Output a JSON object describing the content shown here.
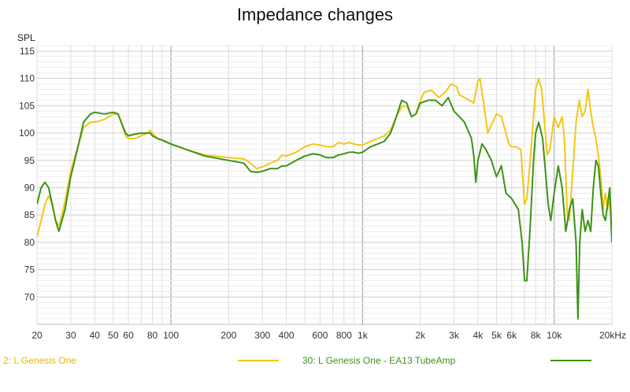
{
  "chart_data": {
    "type": "line",
    "title": "Impedance changes",
    "ylabel": "SPL",
    "xlabel": "",
    "x_scale": "log",
    "xlim": [
      20,
      20000
    ],
    "ylim": [
      65,
      116
    ],
    "grid": true,
    "legend_position": "bottom",
    "y_ticks": [
      70,
      75,
      80,
      85,
      90,
      95,
      100,
      105,
      110,
      115
    ],
    "x_ticks": [
      {
        "value": 20,
        "label": "20"
      },
      {
        "value": 30,
        "label": "30"
      },
      {
        "value": 40,
        "label": "40"
      },
      {
        "value": 50,
        "label": "50"
      },
      {
        "value": 60,
        "label": "60"
      },
      {
        "value": 80,
        "label": "80"
      },
      {
        "value": 100,
        "label": "100"
      },
      {
        "value": 200,
        "label": "200"
      },
      {
        "value": 300,
        "label": "300"
      },
      {
        "value": 400,
        "label": "400"
      },
      {
        "value": 600,
        "label": "600"
      },
      {
        "value": 800,
        "label": "800"
      },
      {
        "value": 1000,
        "label": "1k"
      },
      {
        "value": 2000,
        "label": "2k"
      },
      {
        "value": 3000,
        "label": "3k"
      },
      {
        "value": 4000,
        "label": "4k"
      },
      {
        "value": 5000,
        "label": "5k"
      },
      {
        "value": 6000,
        "label": "6k"
      },
      {
        "value": 8000,
        "label": "8k"
      },
      {
        "value": 10000,
        "label": "10k"
      },
      {
        "value": 20000,
        "label": "20kHz"
      }
    ],
    "series": [
      {
        "name": "2: L Genesis One",
        "color": "#f2c718",
        "points": [
          [
            20,
            81
          ],
          [
            21,
            84
          ],
          [
            22,
            87
          ],
          [
            23,
            88.5
          ],
          [
            24,
            87
          ],
          [
            25,
            84
          ],
          [
            26,
            83
          ],
          [
            27,
            85
          ],
          [
            28,
            87.5
          ],
          [
            30,
            93
          ],
          [
            33,
            98
          ],
          [
            35,
            101
          ],
          [
            38,
            102
          ],
          [
            40,
            102
          ],
          [
            45,
            102.5
          ],
          [
            50,
            103.5
          ],
          [
            53,
            103.5
          ],
          [
            55,
            102
          ],
          [
            58,
            99.5
          ],
          [
            60,
            99
          ],
          [
            65,
            99
          ],
          [
            70,
            99.5
          ],
          [
            75,
            100
          ],
          [
            78,
            100.5
          ],
          [
            80,
            100
          ],
          [
            85,
            99
          ],
          [
            90,
            98.8
          ],
          [
            100,
            98
          ],
          [
            120,
            97
          ],
          [
            150,
            96
          ],
          [
            200,
            95.5
          ],
          [
            240,
            95.3
          ],
          [
            260,
            94.5
          ],
          [
            280,
            93.5
          ],
          [
            300,
            93.8
          ],
          [
            330,
            94.5
          ],
          [
            360,
            95
          ],
          [
            380,
            96
          ],
          [
            400,
            95.8
          ],
          [
            450,
            96.5
          ],
          [
            500,
            97.5
          ],
          [
            550,
            98
          ],
          [
            600,
            97.8
          ],
          [
            650,
            97.5
          ],
          [
            700,
            97.5
          ],
          [
            750,
            98.3
          ],
          [
            800,
            98
          ],
          [
            850,
            98.3
          ],
          [
            900,
            98
          ],
          [
            950,
            97.8
          ],
          [
            1000,
            97.8
          ],
          [
            1100,
            98.5
          ],
          [
            1200,
            99
          ],
          [
            1300,
            99.5
          ],
          [
            1400,
            100.5
          ],
          [
            1500,
            103
          ],
          [
            1600,
            104.8
          ],
          [
            1700,
            105
          ],
          [
            1800,
            103
          ],
          [
            1900,
            103.5
          ],
          [
            2000,
            106
          ],
          [
            2100,
            107.5
          ],
          [
            2300,
            107.8
          ],
          [
            2500,
            106.5
          ],
          [
            2700,
            107.5
          ],
          [
            2900,
            109
          ],
          [
            3100,
            108.5
          ],
          [
            3200,
            107
          ],
          [
            3400,
            106.5
          ],
          [
            3600,
            106
          ],
          [
            3800,
            105.5
          ],
          [
            4000,
            109.5
          ],
          [
            4100,
            110
          ],
          [
            4300,
            105
          ],
          [
            4500,
            100
          ],
          [
            4700,
            101.5
          ],
          [
            5000,
            103.5
          ],
          [
            5300,
            103
          ],
          [
            5500,
            101
          ],
          [
            5800,
            98
          ],
          [
            6000,
            97.5
          ],
          [
            6300,
            97.5
          ],
          [
            6700,
            97
          ],
          [
            7000,
            87
          ],
          [
            7200,
            88
          ],
          [
            7500,
            95
          ],
          [
            7800,
            103
          ],
          [
            8000,
            108
          ],
          [
            8300,
            110
          ],
          [
            8600,
            108
          ],
          [
            9000,
            100
          ],
          [
            9200,
            96
          ],
          [
            9500,
            97
          ],
          [
            10000,
            103
          ],
          [
            10500,
            101
          ],
          [
            11000,
            103
          ],
          [
            11300,
            99
          ],
          [
            11700,
            85
          ],
          [
            12000,
            84
          ],
          [
            12500,
            93
          ],
          [
            13000,
            102
          ],
          [
            13500,
            106
          ],
          [
            14000,
            103
          ],
          [
            14500,
            104
          ],
          [
            15000,
            108
          ],
          [
            15500,
            104
          ],
          [
            16000,
            101
          ],
          [
            16500,
            99
          ],
          [
            17000,
            96
          ],
          [
            17500,
            92
          ],
          [
            18000,
            86
          ],
          [
            18500,
            89
          ],
          [
            19000,
            86
          ],
          [
            19500,
            88
          ],
          [
            20000,
            81
          ]
        ]
      },
      {
        "name": "30: L Genesis One - EA13 TubeAmp",
        "color": "#3d9316",
        "points": [
          [
            20,
            87
          ],
          [
            21,
            90
          ],
          [
            22,
            91
          ],
          [
            23,
            90
          ],
          [
            24,
            87
          ],
          [
            25,
            84
          ],
          [
            26,
            82
          ],
          [
            27,
            84
          ],
          [
            28,
            86
          ],
          [
            30,
            92
          ],
          [
            33,
            98
          ],
          [
            35,
            102
          ],
          [
            38,
            103.5
          ],
          [
            40,
            103.8
          ],
          [
            45,
            103.5
          ],
          [
            50,
            103.8
          ],
          [
            53,
            103.5
          ],
          [
            55,
            102
          ],
          [
            58,
            100
          ],
          [
            60,
            99.5
          ],
          [
            65,
            99.8
          ],
          [
            70,
            100
          ],
          [
            75,
            100
          ],
          [
            78,
            100
          ],
          [
            80,
            99.5
          ],
          [
            85,
            99
          ],
          [
            90,
            98.7
          ],
          [
            100,
            98
          ],
          [
            120,
            97
          ],
          [
            150,
            95.8
          ],
          [
            200,
            95
          ],
          [
            240,
            94.5
          ],
          [
            260,
            93
          ],
          [
            280,
            92.8
          ],
          [
            300,
            93
          ],
          [
            330,
            93.5
          ],
          [
            360,
            93.5
          ],
          [
            380,
            94
          ],
          [
            400,
            94
          ],
          [
            450,
            95
          ],
          [
            500,
            95.8
          ],
          [
            550,
            96.2
          ],
          [
            600,
            96
          ],
          [
            650,
            95.5
          ],
          [
            700,
            95.5
          ],
          [
            750,
            96
          ],
          [
            800,
            96.2
          ],
          [
            850,
            96.5
          ],
          [
            900,
            96.5
          ],
          [
            950,
            96.3
          ],
          [
            1000,
            96.5
          ],
          [
            1100,
            97.5
          ],
          [
            1200,
            98
          ],
          [
            1300,
            98.5
          ],
          [
            1400,
            100
          ],
          [
            1500,
            103
          ],
          [
            1600,
            106
          ],
          [
            1700,
            105.5
          ],
          [
            1800,
            103
          ],
          [
            1900,
            103.5
          ],
          [
            2000,
            105.5
          ],
          [
            2200,
            106
          ],
          [
            2400,
            106
          ],
          [
            2600,
            105
          ],
          [
            2800,
            106.5
          ],
          [
            3000,
            104
          ],
          [
            3200,
            103
          ],
          [
            3400,
            102
          ],
          [
            3600,
            100
          ],
          [
            3700,
            99
          ],
          [
            3800,
            96
          ],
          [
            3900,
            91
          ],
          [
            4000,
            95
          ],
          [
            4200,
            98
          ],
          [
            4400,
            97
          ],
          [
            4700,
            95
          ],
          [
            5000,
            92
          ],
          [
            5300,
            94
          ],
          [
            5600,
            89
          ],
          [
            6000,
            88
          ],
          [
            6500,
            86
          ],
          [
            6800,
            80
          ],
          [
            7000,
            73
          ],
          [
            7200,
            73
          ],
          [
            7500,
            83
          ],
          [
            7800,
            95
          ],
          [
            8000,
            100
          ],
          [
            8300,
            102
          ],
          [
            8700,
            99
          ],
          [
            9000,
            93
          ],
          [
            9300,
            87
          ],
          [
            9600,
            84
          ],
          [
            10000,
            89
          ],
          [
            10500,
            94
          ],
          [
            11000,
            90
          ],
          [
            11500,
            82
          ],
          [
            12000,
            86
          ],
          [
            12500,
            88
          ],
          [
            13000,
            80
          ],
          [
            13300,
            66
          ],
          [
            13600,
            80
          ],
          [
            14000,
            86
          ],
          [
            14500,
            82
          ],
          [
            15000,
            84
          ],
          [
            15500,
            82
          ],
          [
            16000,
            90
          ],
          [
            16500,
            95
          ],
          [
            17000,
            94
          ],
          [
            17500,
            89
          ],
          [
            18000,
            85
          ],
          [
            18500,
            84
          ],
          [
            19000,
            87
          ],
          [
            19500,
            90
          ],
          [
            20000,
            80
          ]
        ]
      }
    ]
  },
  "legend": {
    "series1_label": "2: L Genesis One",
    "series2_label": "30: L Genesis One - EA13 TubeAmp"
  }
}
